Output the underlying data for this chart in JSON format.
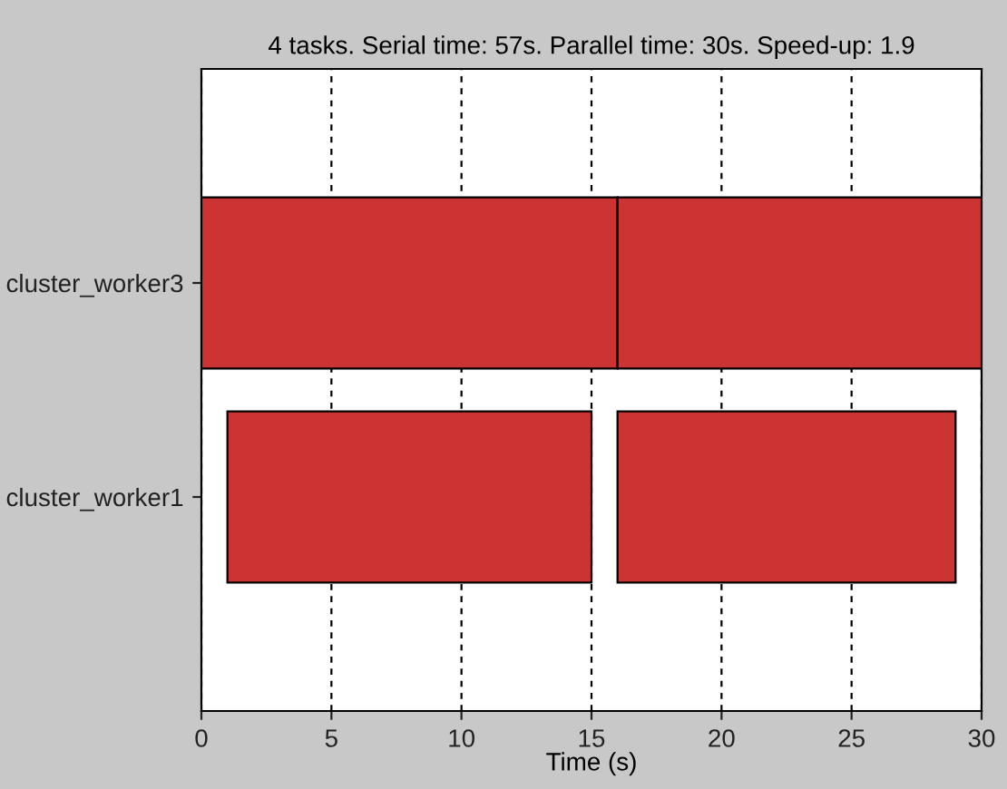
{
  "chart_data": {
    "type": "bar",
    "orientation": "horizontal",
    "title": "4 tasks. Serial time: 57s. Parallel time: 30s. Speed-up: 1.9",
    "xlabel": "Time (s)",
    "categories": [
      "cluster_worker3",
      "cluster_worker1"
    ],
    "series": [
      {
        "color": "#cc3333",
        "values": [
          16,
          14
        ],
        "base": [
          0,
          1
        ]
      },
      {
        "color": "#cc3333",
        "values": [
          14,
          13
        ],
        "base": [
          16,
          16
        ]
      }
    ],
    "xlim": [
      0,
      30
    ],
    "xticks": [
      0,
      5,
      10,
      15,
      20,
      25,
      30
    ],
    "grid": "x",
    "legend": false
  }
}
